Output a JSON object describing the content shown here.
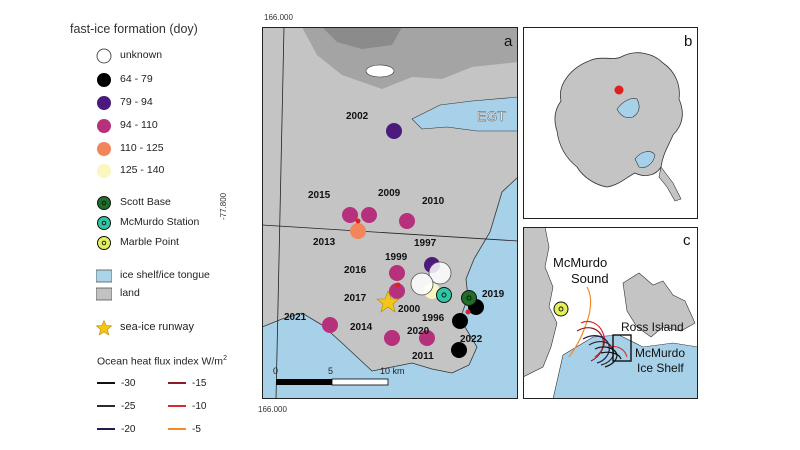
{
  "legend": {
    "title": "fast-ice formation (doy)",
    "classes": [
      {
        "label": "unknown",
        "color": "#ffffff"
      },
      {
        "label": "64 - 79",
        "color": "#000000"
      },
      {
        "label": "79 - 94",
        "color": "#4b1a7d"
      },
      {
        "label": "94 - 110",
        "color": "#b5317c"
      },
      {
        "label": "110 - 125",
        "color": "#f2855c"
      },
      {
        "label": "125 - 140",
        "color": "#fbf5c2"
      }
    ],
    "stations": [
      {
        "label": "Scott Base",
        "color": "#1f6e2a"
      },
      {
        "label": "McMurdo Station",
        "color": "#2fc6a6"
      },
      {
        "label": "Marble Point",
        "color": "#e3f05a"
      }
    ],
    "areas": [
      {
        "label": "ice shelf/ice tongue",
        "color": "#a9d4ea"
      },
      {
        "label": "land",
        "color": "#c2c2c2"
      }
    ],
    "runway": {
      "label": "sea-ice runway",
      "color": "#f5c518"
    },
    "heat_flux": {
      "title": "Ocean heat flux index W/m",
      "title_sup": "2",
      "items": [
        {
          "label": "-30",
          "color": "#111111"
        },
        {
          "label": "-25",
          "color": "#2b2b2b"
        },
        {
          "label": "-20",
          "color": "#1f1f4f"
        },
        {
          "label": "-15",
          "color": "#8a1c2c"
        },
        {
          "label": "-10",
          "color": "#d62c2c"
        },
        {
          "label": "-5",
          "color": "#f28c2a"
        }
      ]
    }
  },
  "map_a": {
    "panel_label": "a",
    "top_coord": "166.000",
    "bottom_coord": "166.000",
    "left_coord": "-77.800",
    "feature_label": "EGT",
    "scale": {
      "ticks": [
        "0",
        "5",
        "10 km"
      ]
    },
    "years": [
      {
        "label": "2002",
        "cls": "79 - 94"
      },
      {
        "label": "2015",
        "cls": "94 - 110"
      },
      {
        "label": "2009",
        "cls": "94 - 110"
      },
      {
        "label": "2010",
        "cls": "94 - 110"
      },
      {
        "label": "2013",
        "cls": "110 - 125"
      },
      {
        "label": "1997",
        "cls": "79 - 94"
      },
      {
        "label": "1999",
        "cls": "unknown"
      },
      {
        "label": "2016",
        "cls": "94 - 110"
      },
      {
        "label": "2017",
        "cls": "94 - 110"
      },
      {
        "label": "2000",
        "cls": "125 - 140"
      },
      {
        "label": "1996",
        "cls": "unknown"
      },
      {
        "label": "2019",
        "cls": "64 - 79"
      },
      {
        "label": "2021",
        "cls": "94 - 110"
      },
      {
        "label": "2014",
        "cls": "94 - 110"
      },
      {
        "label": "2020",
        "cls": "94 - 110"
      },
      {
        "label": "2022",
        "cls": "64 - 79"
      },
      {
        "label": "2011",
        "cls": "64 - 79"
      }
    ]
  },
  "map_b": {
    "panel_label": "b"
  },
  "map_c": {
    "panel_label": "c",
    "labels": [
      "McMurdo",
      "Sound",
      "Ross Island",
      "McMurdo",
      "Ice Shelf"
    ]
  }
}
